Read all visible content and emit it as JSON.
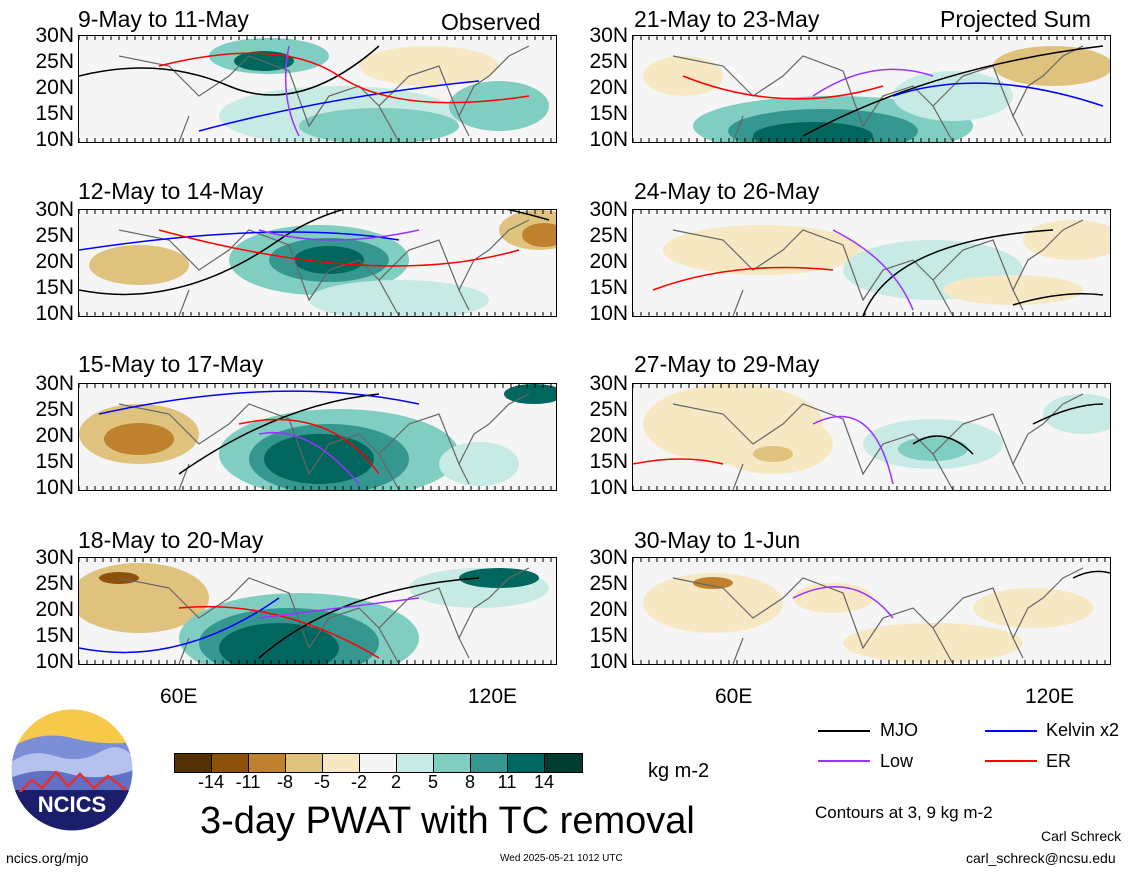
{
  "panels": [
    {
      "title": "9-May to 11-May",
      "tag": "Observed"
    },
    {
      "title": "12-May to 14-May",
      "tag": ""
    },
    {
      "title": "15-May to 17-May",
      "tag": ""
    },
    {
      "title": "18-May to 20-May",
      "tag": ""
    },
    {
      "title": "21-May to 23-May",
      "tag": "Projected Sum"
    },
    {
      "title": "24-May to 26-May",
      "tag": ""
    },
    {
      "title": "27-May to 29-May",
      "tag": ""
    },
    {
      "title": "30-May to 1-Jun",
      "tag": ""
    }
  ],
  "lat_labels": [
    "30N",
    "25N",
    "20N",
    "15N",
    "10N"
  ],
  "lon_labels": [
    "60E",
    "120E"
  ],
  "colorbar": {
    "colors": [
      "#543005",
      "#8c510a",
      "#bf812d",
      "#dfc27d",
      "#f6e8c3",
      "#f5f5f5",
      "#c7eae5",
      "#80cdc1",
      "#35978f",
      "#01665e",
      "#003c30"
    ],
    "ticks": [
      "-14",
      "-11",
      "-8",
      "-5",
      "-2",
      "2",
      "5",
      "8",
      "11",
      "14"
    ],
    "unit": "kg m-2"
  },
  "legend": [
    {
      "label": "MJO",
      "color": "#000000"
    },
    {
      "label": "Kelvin x2",
      "color": "#0000ff"
    },
    {
      "label": "Low",
      "color": "#9933ff"
    },
    {
      "label": "ER",
      "color": "#ff0000"
    }
  ],
  "contours_note": "Contours at 3, 9 kg m-2",
  "main_title": "3-day PWAT with TC removal",
  "logo_text": "NCICS",
  "footer": {
    "left": "ncics.org/mjo",
    "center": "Wed 2025-05-21 1012 UTC",
    "author": "Carl Schreck",
    "email": "carl_schreck@ncsu.edu"
  }
}
